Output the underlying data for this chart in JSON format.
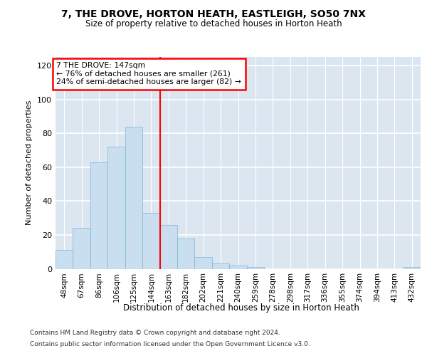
{
  "title1": "7, THE DROVE, HORTON HEATH, EASTLEIGH, SO50 7NX",
  "title2": "Size of property relative to detached houses in Horton Heath",
  "xlabel": "Distribution of detached houses by size in Horton Heath",
  "ylabel": "Number of detached properties",
  "bar_labels": [
    "48sqm",
    "67sqm",
    "86sqm",
    "106sqm",
    "125sqm",
    "144sqm",
    "163sqm",
    "182sqm",
    "202sqm",
    "221sqm",
    "240sqm",
    "259sqm",
    "278sqm",
    "298sqm",
    "317sqm",
    "336sqm",
    "355sqm",
    "374sqm",
    "394sqm",
    "413sqm",
    "432sqm"
  ],
  "bar_values": [
    11,
    24,
    63,
    72,
    84,
    33,
    26,
    18,
    7,
    3,
    2,
    1,
    0,
    0,
    0,
    0,
    0,
    0,
    0,
    0,
    1
  ],
  "bar_color": "#c9dff0",
  "bar_edge_color": "#7fb3d3",
  "vline_color": "red",
  "vline_x": 5.5,
  "annotation_text": "7 THE DROVE: 147sqm\n← 76% of detached houses are smaller (261)\n24% of semi-detached houses are larger (82) →",
  "annotation_box_color": "white",
  "annotation_box_edge_color": "red",
  "ylim": [
    0,
    125
  ],
  "yticks": [
    0,
    20,
    40,
    60,
    80,
    100,
    120
  ],
  "plot_bg": "#dce6f0",
  "grid_color": "white",
  "footer1": "Contains HM Land Registry data © Crown copyright and database right 2024.",
  "footer2": "Contains public sector information licensed under the Open Government Licence v3.0."
}
